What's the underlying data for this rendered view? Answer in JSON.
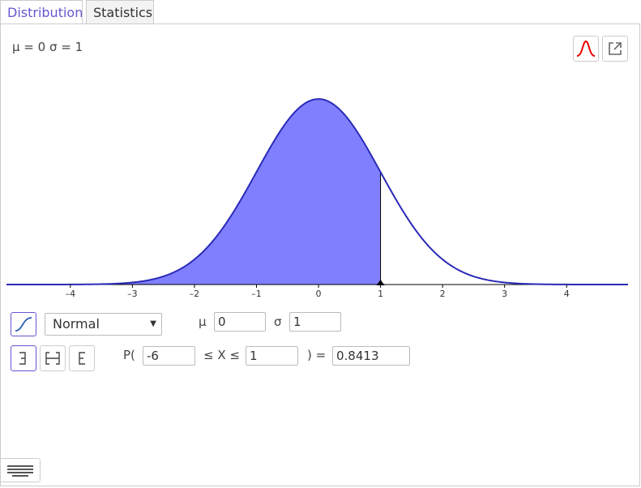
{
  "tabs": [
    "Distribution",
    "Statistics"
  ],
  "info": "μ = 0 σ = 1",
  "plot": {
    "xlim": [
      -5.03,
      4.99
    ],
    "ylim": [
      0,
      0.455
    ],
    "xticks": [
      {
        "value": -4,
        "label": "–4"
      },
      {
        "value": -3,
        "label": "–3"
      },
      {
        "value": -2,
        "label": "–2"
      },
      {
        "value": -1,
        "label": "–1"
      },
      0,
      1,
      2,
      3,
      4
    ]
  },
  "controls": {
    "distribution": "Normal",
    "mu_label": "μ",
    "mu": "0",
    "sigma_label": "σ",
    "sigma": "1",
    "p_open": "P(",
    "lower": "-6",
    "between": "≤ X ≤",
    "upper": "1",
    "p_close": ") =",
    "result": "0.8413"
  }
}
